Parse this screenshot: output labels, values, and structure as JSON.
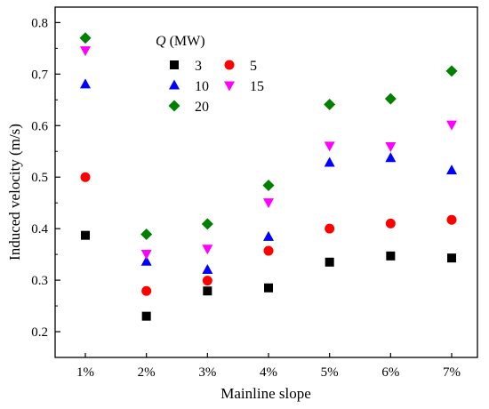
{
  "chart_data": {
    "type": "scatter",
    "xlabel": "Mainline slope",
    "ylabel": "Induced velocity (m/s)",
    "categories": [
      "1%",
      "2%",
      "3%",
      "4%",
      "5%",
      "6%",
      "7%"
    ],
    "yticks": [
      "0.2",
      "0.3",
      "0.4",
      "0.5",
      "0.6",
      "0.7",
      "0.8"
    ],
    "ylim": [
      0.15,
      0.83
    ],
    "legend": {
      "title_symbol": "Q",
      "title_unit": " (MW)",
      "placement": "top-left, inside plot"
    },
    "series": [
      {
        "name": "3",
        "marker": "square",
        "color": "#000000",
        "values": [
          0.387,
          0.23,
          0.279,
          0.285,
          0.335,
          0.347,
          0.343
        ]
      },
      {
        "name": "5",
        "marker": "circle",
        "color": "#ff0000",
        "values": [
          0.5,
          0.279,
          0.299,
          0.357,
          0.4,
          0.41,
          0.417
        ]
      },
      {
        "name": "10",
        "marker": "triangle-up",
        "color": "#0000ff",
        "values": [
          0.68,
          0.336,
          0.32,
          0.384,
          0.528,
          0.537,
          0.513
        ]
      },
      {
        "name": "15",
        "marker": "triangle-down",
        "color": "#ff00ff",
        "values": [
          0.746,
          0.351,
          0.361,
          0.451,
          0.561,
          0.56,
          0.602
        ]
      },
      {
        "name": "20",
        "marker": "diamond",
        "color": "#008000",
        "values": [
          0.77,
          0.389,
          0.409,
          0.484,
          0.641,
          0.652,
          0.706
        ]
      }
    ]
  }
}
